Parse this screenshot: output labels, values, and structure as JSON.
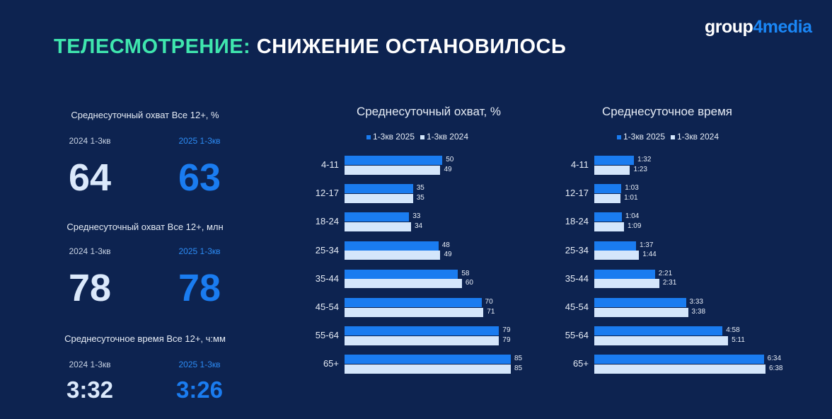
{
  "title": {
    "accent": "ТЕЛЕСМОТРЕНИЕ:",
    "rest": " СНИЖЕНИЕ ОСТАНОВИЛОСЬ"
  },
  "logo": {
    "part1": "group",
    "part2": "4media"
  },
  "kpis": [
    {
      "label": "Среднесуточный охват Все 12+, %",
      "y2024": "2024 1-3кв",
      "y2025": "2025 1-3кв",
      "v2024": "64",
      "v2025": "63"
    },
    {
      "label": "Среднесуточный охват Все 12+, млн",
      "y2024": "2024 1-3кв",
      "y2025": "2025 1-3кв",
      "v2024": "78",
      "v2025": "78"
    },
    {
      "label": "Среднесуточное время Все 12+, ч:мм",
      "y2024": "2024 1-3кв",
      "y2025": "2025 1-3кв",
      "v2024": "3:32",
      "v2025": "3:26"
    }
  ],
  "colors": {
    "c2025": "#1a7cf0",
    "c2024": "#d4e6fb"
  },
  "chart_data": [
    {
      "type": "bar",
      "title": "Среднесуточный охват, %",
      "legend": [
        "1-3кв 2025",
        "1-3кв 2024"
      ],
      "categories": [
        "4-11",
        "12-17",
        "18-24",
        "25-34",
        "35-44",
        "45-54",
        "55-64",
        "65+"
      ],
      "series": [
        {
          "name": "1-3кв 2025",
          "values": [
            50,
            35,
            33,
            48,
            58,
            70,
            79,
            85
          ],
          "labels": [
            "50",
            "35",
            "33",
            "48",
            "58",
            "70",
            "79",
            "85"
          ]
        },
        {
          "name": "1-3кв 2024",
          "values": [
            49,
            35,
            34,
            49,
            60,
            71,
            79,
            85
          ],
          "labels": [
            "49",
            "35",
            "34",
            "49",
            "60",
            "71",
            "79",
            "85"
          ]
        }
      ]
    },
    {
      "type": "bar",
      "title": "Среднесуточное время",
      "legend": [
        "1-3кв 2025",
        "1-3кв 2024"
      ],
      "categories": [
        "4-11",
        "12-17",
        "18-24",
        "25-34",
        "35-44",
        "45-54",
        "55-64",
        "65+"
      ],
      "series": [
        {
          "name": "1-3кв 2025",
          "values": [
            92,
            63,
            64,
            97,
            141,
            213,
            298,
            394
          ],
          "labels": [
            "1:32",
            "1:03",
            "1:04",
            "1:37",
            "2:21",
            "3:33",
            "4:58",
            "6:34"
          ]
        },
        {
          "name": "1-3кв 2024",
          "values": [
            83,
            61,
            69,
            104,
            151,
            218,
            311,
            398
          ],
          "labels": [
            "1:23",
            "1:01",
            "1:09",
            "1:44",
            "2:31",
            "3:38",
            "5:11",
            "6:38"
          ]
        }
      ]
    }
  ]
}
